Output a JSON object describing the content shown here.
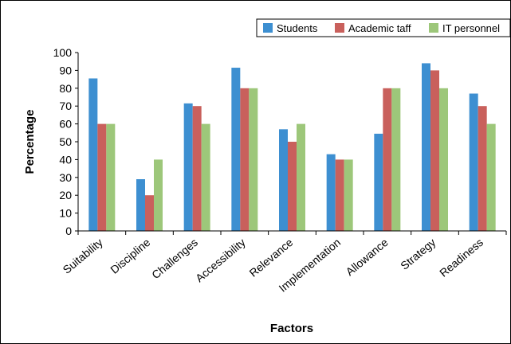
{
  "chart_data": {
    "type": "bar",
    "xlabel": "Factors",
    "ylabel": "Percentage",
    "ylim": [
      0,
      100
    ],
    "yticks": [
      0,
      10,
      20,
      30,
      40,
      50,
      60,
      70,
      80,
      90,
      100
    ],
    "grid": false,
    "legend_position": "top-right",
    "categories": [
      "Suitability",
      "Discipline",
      "Challenges",
      "Accessibility",
      "Relevance",
      "Implementation",
      "Allowance",
      "Strategy",
      "Readiness"
    ],
    "series": [
      {
        "name": "Students",
        "color": "#3d8fd1",
        "values": [
          85.5,
          29,
          71.5,
          91.5,
          57,
          43,
          54.5,
          94,
          77
        ]
      },
      {
        "name": "Academic taff",
        "color": "#c9605c",
        "values": [
          60,
          20,
          70,
          80,
          50,
          40,
          80,
          90,
          70
        ]
      },
      {
        "name": "IT personnel",
        "color": "#9dc77a",
        "values": [
          60,
          40,
          60,
          80,
          60,
          40,
          80,
          80,
          60
        ]
      }
    ]
  }
}
